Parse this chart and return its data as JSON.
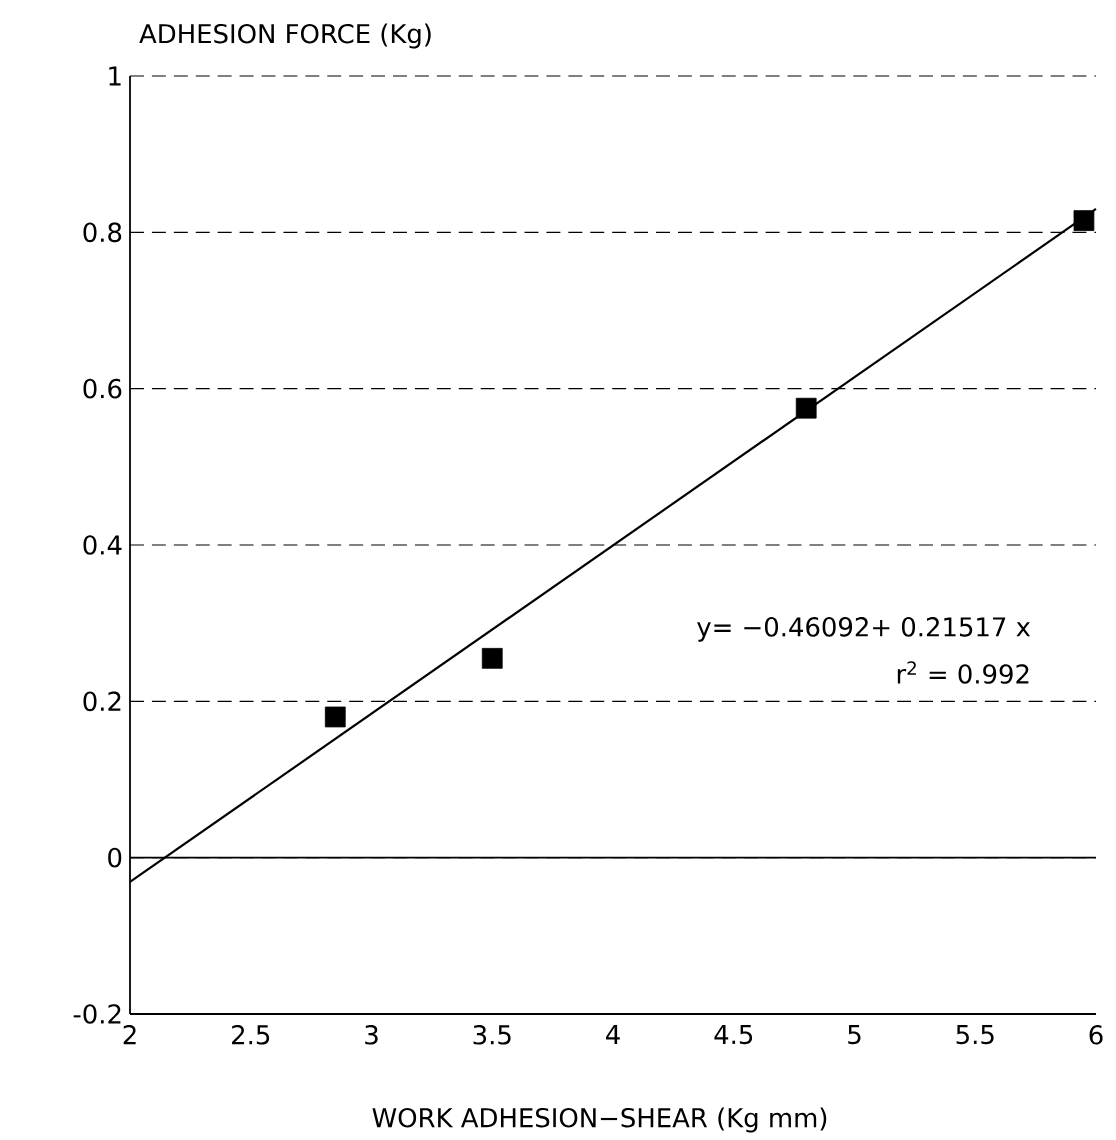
{
  "chart_data": {
    "type": "scatter",
    "xlabel": "WORK ADHESION−SHEAR (Kg mm)",
    "ylabel": "ADHESION FORCE (Kg)",
    "annotations": [
      "y= −0.46092+ 0.21517 x",
      "r$^{2}$ = 0.992"
    ],
    "xlim": [
      2,
      6
    ],
    "ylim": [
      -0.2,
      1
    ],
    "xticks": [
      2,
      2.5,
      3,
      3.5,
      4,
      4.5,
      5,
      5.5,
      6
    ],
    "yticks": [
      -0.2,
      0,
      0.2,
      0.4,
      0.6,
      0.8,
      1
    ],
    "grid": "y",
    "ref_lines": [
      {
        "axis": "y",
        "value": 0,
        "color": "#000000",
        "line_style": "solid"
      }
    ],
    "series": [
      {
        "color": "#000000",
        "marker": "square",
        "x": [
          2.85,
          3.5,
          4.8,
          5.95
        ],
        "values": [
          0.18,
          0.255,
          0.575,
          0.815
        ]
      },
      {
        "type": "line",
        "color": "#000000",
        "marker": "none",
        "line_style": "solid",
        "x": [
          2,
          6
        ],
        "values": [
          -0.031,
          0.83
        ]
      }
    ]
  }
}
